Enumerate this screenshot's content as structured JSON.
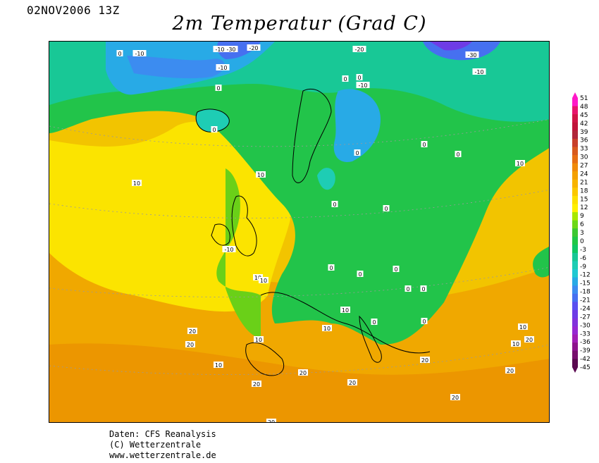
{
  "header": {
    "timestamp": "02NOV2006 13Z",
    "title": "2m Temperatur (Grad C)"
  },
  "colorbar": {
    "labels": [
      "51",
      "48",
      "45",
      "42",
      "39",
      "36",
      "33",
      "30",
      "27",
      "24",
      "21",
      "18",
      "15",
      "12",
      "9",
      "6",
      "3",
      "0",
      "-3",
      "-6",
      "-9",
      "-12",
      "-15",
      "-18",
      "-21",
      "-24",
      "-27",
      "-30",
      "-33",
      "-36",
      "-39",
      "-42",
      "-45"
    ],
    "colors": [
      "#ff18c8",
      "#e8146c",
      "#d01446",
      "#c0143a",
      "#b0283a",
      "#c8402a",
      "#d85a1e",
      "#e66e14",
      "#f08a0a",
      "#f4a000",
      "#f8b400",
      "#fbc800",
      "#fde000",
      "#fff000",
      "#a8e800",
      "#6cd818",
      "#3cc832",
      "#20c846",
      "#10c864",
      "#18c896",
      "#1ecdb4",
      "#20c8d2",
      "#28aae6",
      "#3c8cf0",
      "#4670f0",
      "#5a50f0",
      "#6e3ce6",
      "#8232dc",
      "#9628d2",
      "#a01eb4",
      "#8c148c",
      "#78106e",
      "#5a0a50"
    ],
    "min_label": "-45",
    "max_label": "51"
  },
  "map": {
    "contour_labels": [
      {
        "text": "0"
      },
      {
        "text": "-10"
      },
      {
        "text": "-30"
      },
      {
        "text": "-20"
      },
      {
        "text": "-10"
      },
      {
        "text": "0"
      },
      {
        "text": "-10"
      },
      {
        "text": "-20"
      },
      {
        "text": "-30"
      },
      {
        "text": "-10"
      },
      {
        "text": "0"
      },
      {
        "text": "0"
      },
      {
        "text": "-10"
      },
      {
        "text": "0"
      },
      {
        "text": "0"
      },
      {
        "text": "0"
      },
      {
        "text": "0"
      },
      {
        "text": "10"
      },
      {
        "text": "10"
      },
      {
        "text": "10"
      },
      {
        "text": "0"
      },
      {
        "text": "0"
      },
      {
        "text": "-10"
      },
      {
        "text": "10"
      },
      {
        "text": "10"
      },
      {
        "text": "0"
      },
      {
        "text": "0"
      },
      {
        "text": "0"
      },
      {
        "text": "0"
      },
      {
        "text": "0"
      },
      {
        "text": "10"
      },
      {
        "text": "10"
      },
      {
        "text": "0"
      },
      {
        "text": "10"
      },
      {
        "text": "10"
      },
      {
        "text": "20"
      },
      {
        "text": "20"
      },
      {
        "text": "10"
      },
      {
        "text": "20"
      },
      {
        "text": "20"
      },
      {
        "text": "20"
      },
      {
        "text": "20"
      },
      {
        "text": "20"
      },
      {
        "text": "10"
      },
      {
        "text": "20"
      },
      {
        "text": "20"
      },
      {
        "text": "20"
      },
      {
        "text": "0"
      }
    ]
  },
  "credits": {
    "line1": "Daten: CFS Reanalysis",
    "line2": "(C) Wetterzentrale",
    "line3": "www.wetterzentrale.de"
  }
}
